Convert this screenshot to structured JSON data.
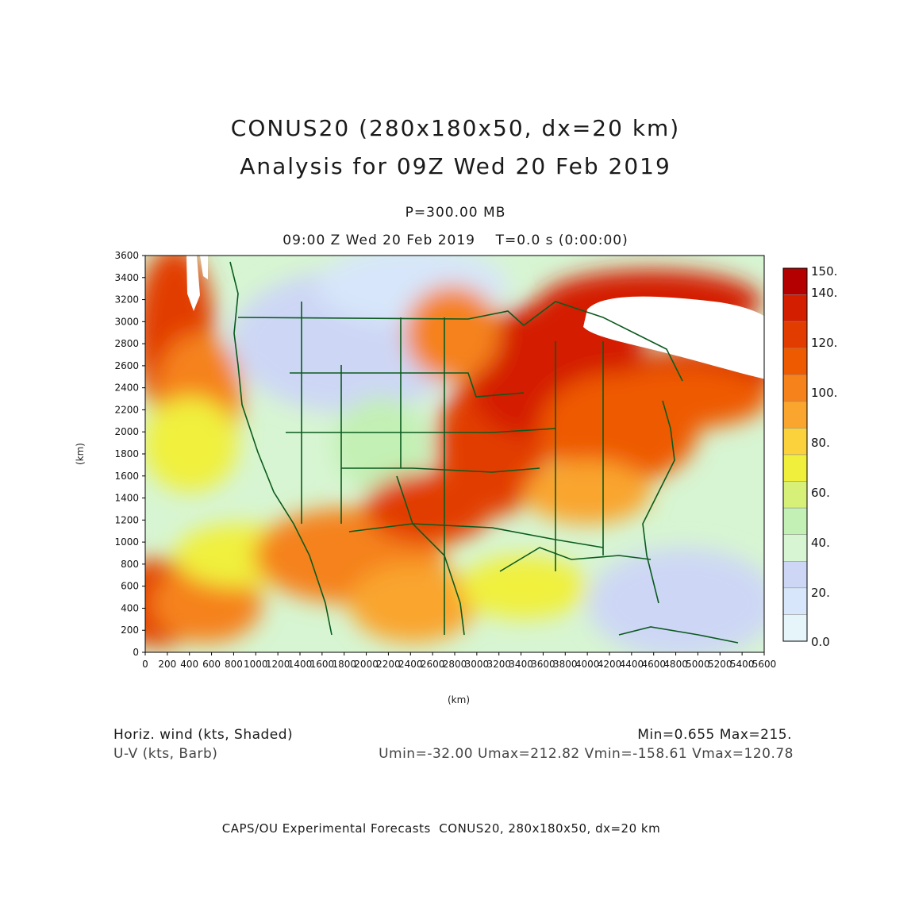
{
  "header": {
    "title_line1": "CONUS20 (280x180x50, dx=20 km)",
    "title_line2": "Analysis for 09Z Wed 20 Feb 2019",
    "level": "P=300.00 MB",
    "time_line": "09:00 Z Wed 20 Feb 2019    T=0.0 s (0:00:00)"
  },
  "axes": {
    "x_label": "(km)",
    "y_label": "(km)",
    "x_ticks": [
      "0",
      "200",
      "400",
      "600",
      "800",
      "1000",
      "1200",
      "1400",
      "1600",
      "1800",
      "2000",
      "2200",
      "2400",
      "2600",
      "2800",
      "3000",
      "3200",
      "3400",
      "3600",
      "3800",
      "4000",
      "4200",
      "4400",
      "4600",
      "4800",
      "5000",
      "5200",
      "5400",
      "5600"
    ],
    "y_ticks": [
      "0",
      "200",
      "400",
      "600",
      "800",
      "1000",
      "1200",
      "1400",
      "1600",
      "1800",
      "2000",
      "2200",
      "2400",
      "2600",
      "2800",
      "3000",
      "3200",
      "3400",
      "3600"
    ],
    "xlim": [
      0,
      5600
    ],
    "ylim": [
      0,
      3600
    ]
  },
  "colorbar": {
    "labels": [
      "150.",
      "140.",
      "120.",
      "100.",
      "80.",
      "60.",
      "40.",
      "20.",
      "0.0"
    ],
    "colors": [
      "#b40000",
      "#d41e00",
      "#e23c00",
      "#ee5a00",
      "#f5821a",
      "#f9a52e",
      "#fbd13c",
      "#f0f03c",
      "#d7f078",
      "#c3f0b4",
      "#d7f5d2",
      "#cdd7f5",
      "#d7e6fa",
      "#e6f5fa"
    ]
  },
  "footer": {
    "left1": "Horiz. wind (kts, Shaded)",
    "left2": "U-V (kts, Barb)",
    "right1": "Min=0.655 Max=215.",
    "right2": "Umin=-32.00 Umax=212.82 Vmin=-158.61 Vmax=120.78",
    "credit": "CAPS/OU Experimental Forecasts  CONUS20, 280x180x50, dx=20 km"
  },
  "map": {
    "field": "Horizontal wind speed (kts)",
    "min": 0.655,
    "max": 215,
    "colors": {
      "coast": "#0a5a1e"
    }
  }
}
